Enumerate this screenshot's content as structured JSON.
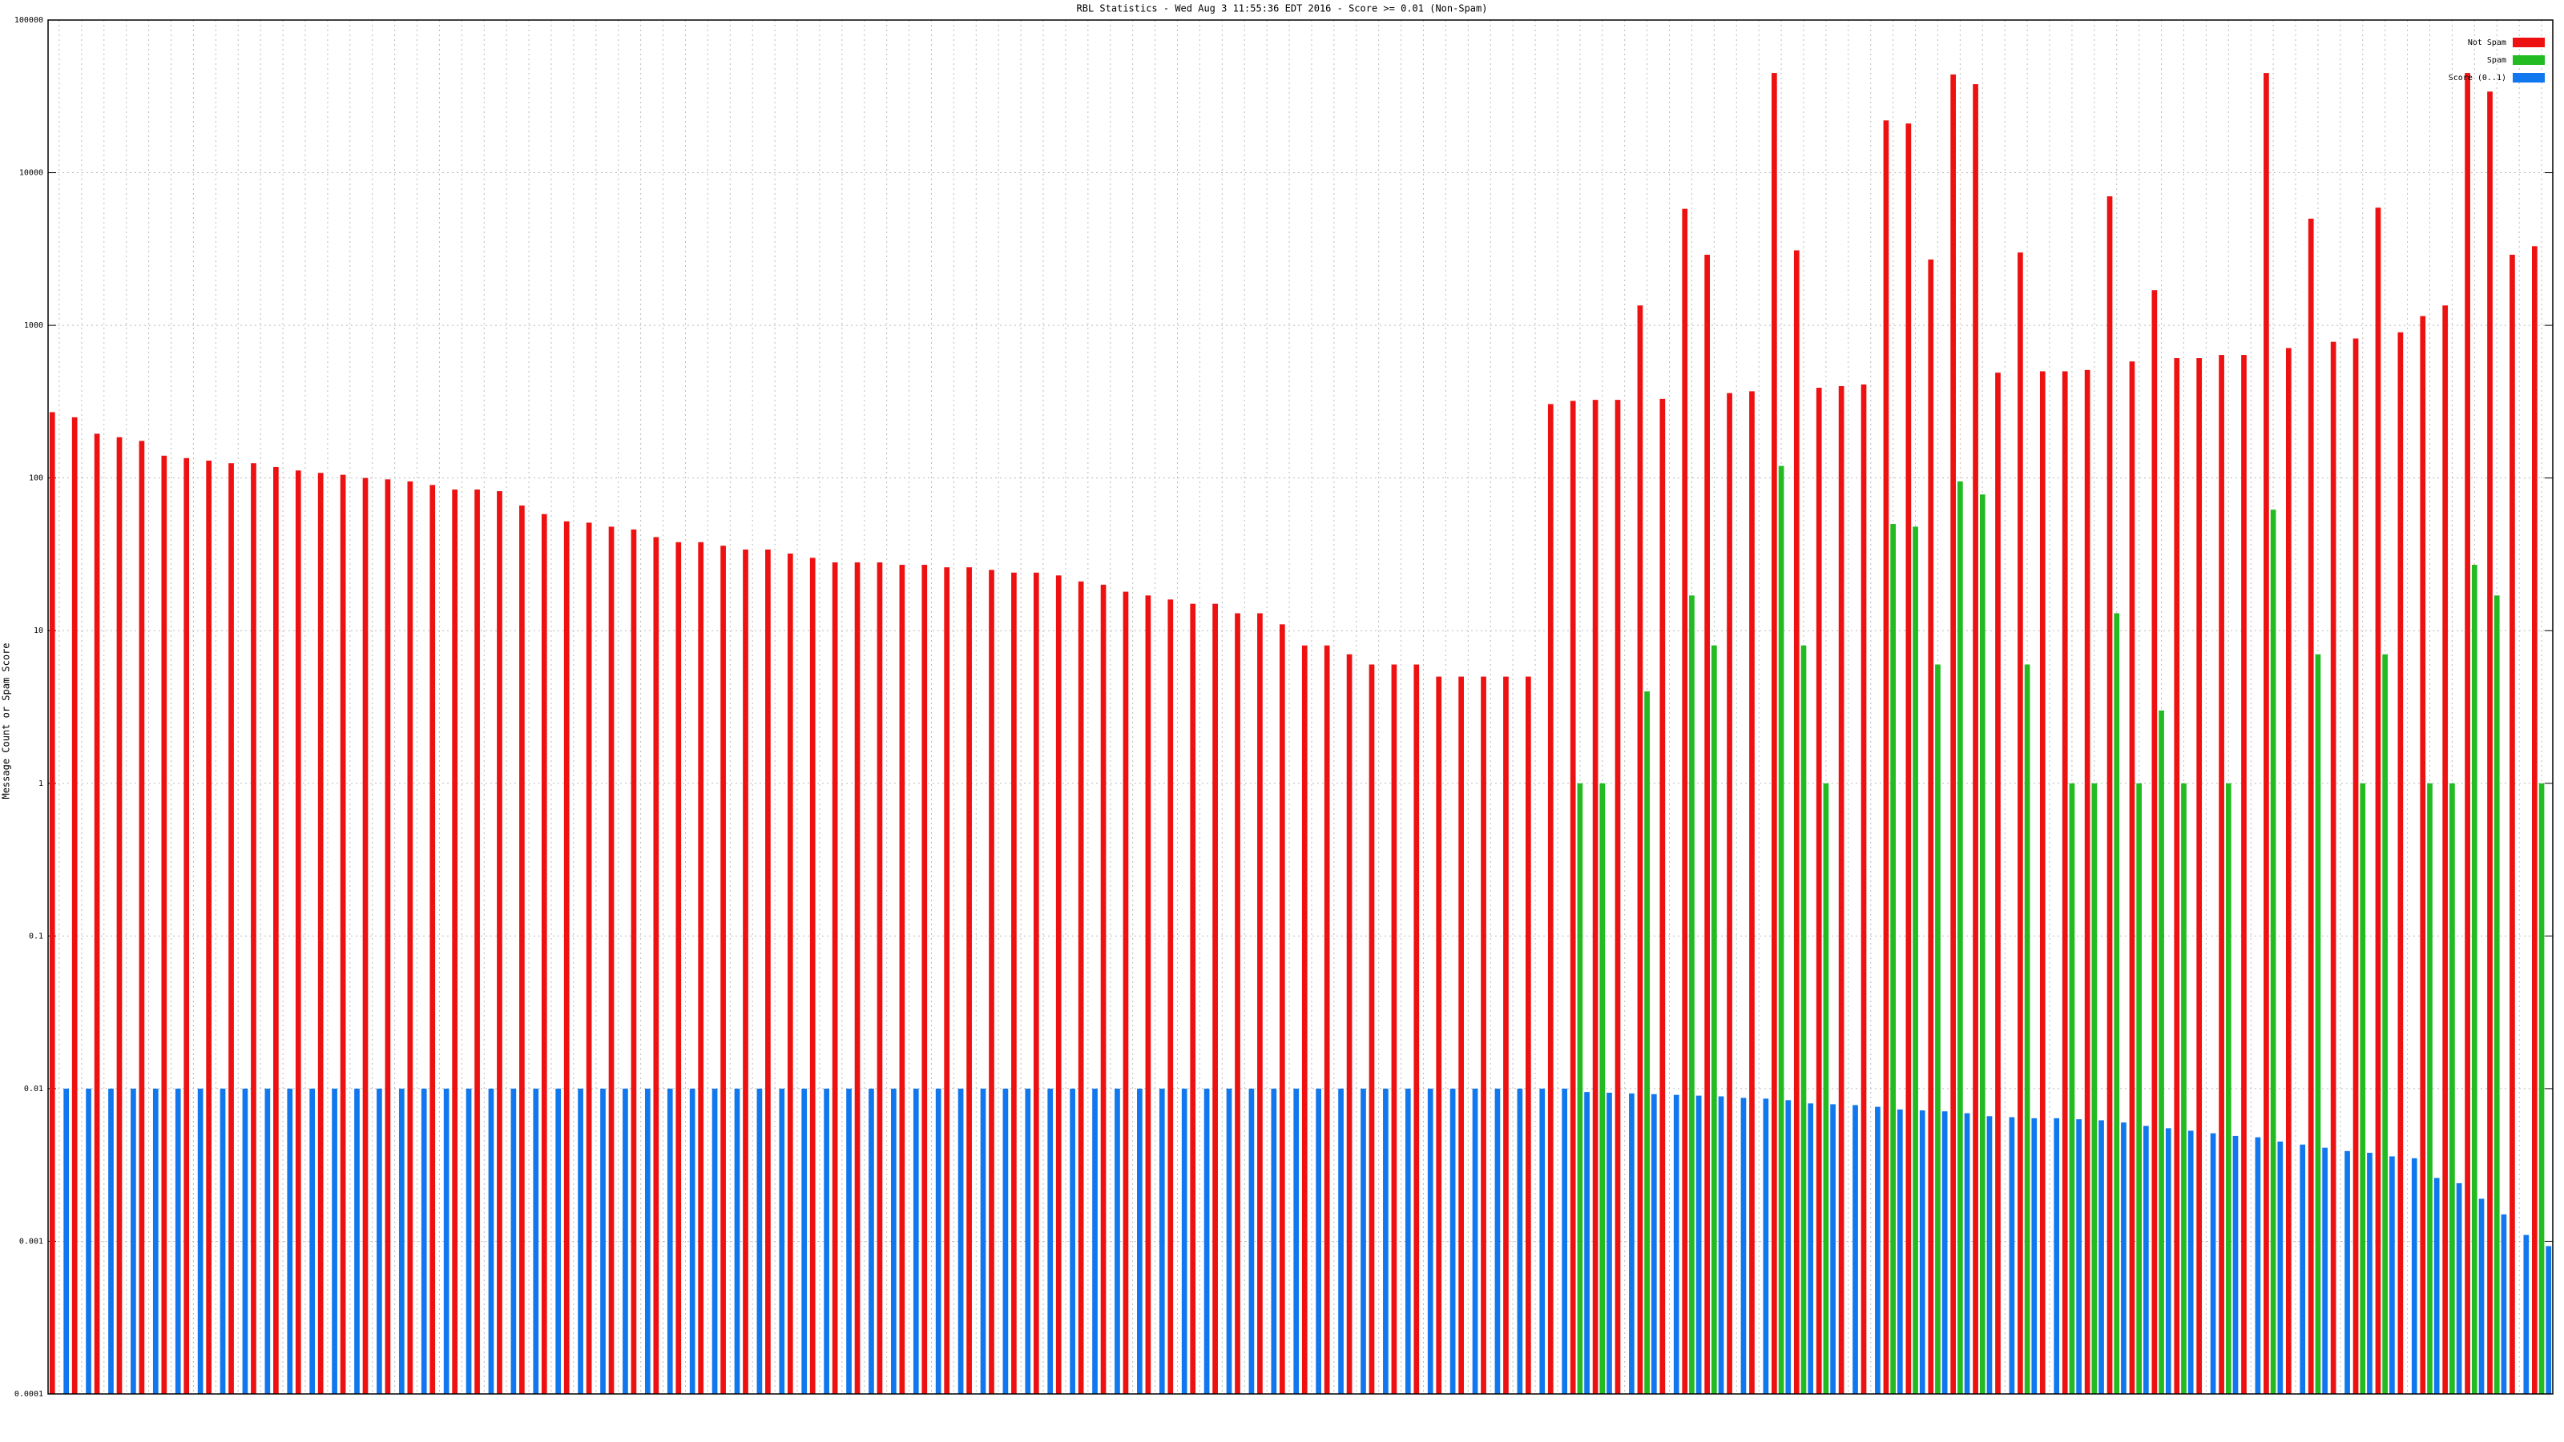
{
  "chart_data": {
    "type": "bar",
    "title": "RBL Statistics - Wed Aug  3 11:55:36 EDT 2016 - Score >= 0.01 (Non-Spam)",
    "ylabel": "Message Count or Spam Score",
    "log_scale": true,
    "grid": true,
    "legend": "top-right",
    "ylim": [
      0.0001,
      100000
    ],
    "yticks": [
      0.0001,
      0.001,
      0.01,
      0.1,
      1,
      10,
      100,
      1000,
      10000,
      100000
    ],
    "categories": [
      null,
      null,
      null,
      null,
      null,
      null,
      null,
      null,
      null,
      null,
      null,
      null,
      null,
      null,
      null,
      null,
      null,
      null,
      null,
      null,
      null,
      null,
      null,
      null,
      null,
      null,
      null,
      null,
      null,
      null,
      null,
      null,
      null,
      null,
      null,
      null,
      null,
      null,
      null,
      null,
      null,
      null,
      null,
      null,
      null,
      null,
      null,
      null,
      null,
      null,
      null,
      null,
      null,
      null,
      null,
      null,
      null,
      null,
      null,
      null,
      null,
      null,
      null,
      null,
      null,
      null,
      null,
      null,
      null,
      null,
      null,
      null,
      null,
      null,
      null,
      null,
      null,
      null,
      null,
      null,
      null,
      null,
      null,
      null,
      null,
      null,
      null,
      null,
      null,
      null,
      null,
      null,
      null,
      null,
      null,
      null,
      null,
      null,
      null,
      null,
      null,
      null,
      null,
      null,
      null,
      null,
      null,
      null,
      null,
      null,
      null,
      null
    ],
    "series": [
      {
        "name": "Not Spam",
        "color": "#ee1111",
        "values": [
          270,
          250,
          195,
          185,
          175,
          140,
          135,
          130,
          125,
          125,
          118,
          112,
          108,
          105,
          100,
          98,
          95,
          90,
          84,
          84,
          82,
          66,
          58,
          52,
          51,
          48,
          46,
          41,
          38,
          38,
          36,
          34,
          34,
          32,
          30,
          28,
          28,
          28,
          27,
          27,
          26,
          26,
          25,
          24,
          24,
          23,
          21,
          20,
          18,
          17,
          16,
          15,
          15,
          13,
          13,
          11,
          8,
          8,
          7,
          6,
          6,
          6,
          5,
          5,
          5,
          5,
          5,
          305,
          320,
          325,
          325,
          1350,
          330,
          5800,
          2900,
          360,
          370,
          45000,
          3100,
          390,
          400,
          410,
          22000,
          21000,
          2700,
          44000,
          38000,
          490,
          3000,
          500,
          500,
          510,
          7000,
          580,
          1700,
          610,
          610,
          640,
          640,
          45000,
          710,
          5000,
          780,
          820,
          5900,
          900,
          1150,
          1350,
          45000,
          34000,
          2900,
          3300
        ]
      },
      {
        "name": "Spam",
        "color": "#22bb22",
        "values": [
          0,
          0,
          0,
          0,
          0,
          0,
          0,
          0,
          0,
          0,
          0,
          0,
          0,
          0,
          0,
          0,
          0,
          0,
          0,
          0,
          0,
          0,
          0,
          0,
          0,
          0,
          0,
          0,
          0,
          0,
          0,
          0,
          0,
          0,
          0,
          0,
          0,
          0,
          0,
          0,
          0,
          0,
          0,
          0,
          0,
          0,
          0,
          0,
          0,
          0,
          0,
          0,
          0,
          0,
          0,
          0,
          0,
          0,
          0,
          0,
          0,
          0,
          0,
          0,
          0,
          0,
          0,
          0,
          1,
          1,
          0,
          4,
          0,
          17,
          8,
          0,
          0,
          120,
          8,
          1,
          0,
          0,
          50,
          48,
          6,
          95,
          78,
          0,
          6,
          0,
          1,
          1,
          13,
          1,
          3,
          1,
          0,
          1,
          0,
          62,
          0,
          7,
          0,
          1,
          7,
          0,
          1,
          1,
          27,
          17,
          0,
          1
        ]
      },
      {
        "name": "Score (0..1)",
        "color": "#1177ee",
        "values": [
          0.01,
          0.01,
          0.01,
          0.01,
          0.01,
          0.01,
          0.01,
          0.01,
          0.01,
          0.01,
          0.01,
          0.01,
          0.01,
          0.01,
          0.01,
          0.01,
          0.01,
          0.01,
          0.01,
          0.01,
          0.01,
          0.01,
          0.01,
          0.01,
          0.01,
          0.01,
          0.01,
          0.01,
          0.01,
          0.01,
          0.01,
          0.01,
          0.01,
          0.01,
          0.01,
          0.01,
          0.01,
          0.01,
          0.01,
          0.01,
          0.01,
          0.01,
          0.01,
          0.01,
          0.01,
          0.01,
          0.01,
          0.01,
          0.01,
          0.01,
          0.01,
          0.01,
          0.01,
          0.01,
          0.01,
          0.01,
          0.01,
          0.01,
          0.01,
          0.01,
          0.01,
          0.01,
          0.01,
          0.01,
          0.01,
          0.01,
          0.01,
          0.01,
          0.0095,
          0.0094,
          0.0093,
          0.0092,
          0.0091,
          0.009,
          0.0089,
          0.0087,
          0.0086,
          0.0084,
          0.008,
          0.0079,
          0.0078,
          0.0076,
          0.0073,
          0.0072,
          0.0071,
          0.0069,
          0.0066,
          0.0065,
          0.0064,
          0.0064,
          0.0063,
          0.0062,
          0.006,
          0.0057,
          0.0055,
          0.0053,
          0.0051,
          0.0049,
          0.0048,
          0.0045,
          0.0043,
          0.0041,
          0.0039,
          0.0038,
          0.0036,
          0.0035,
          0.0026,
          0.0024,
          0.0019,
          0.0015,
          0.0011,
          0.00093
        ]
      }
    ]
  }
}
